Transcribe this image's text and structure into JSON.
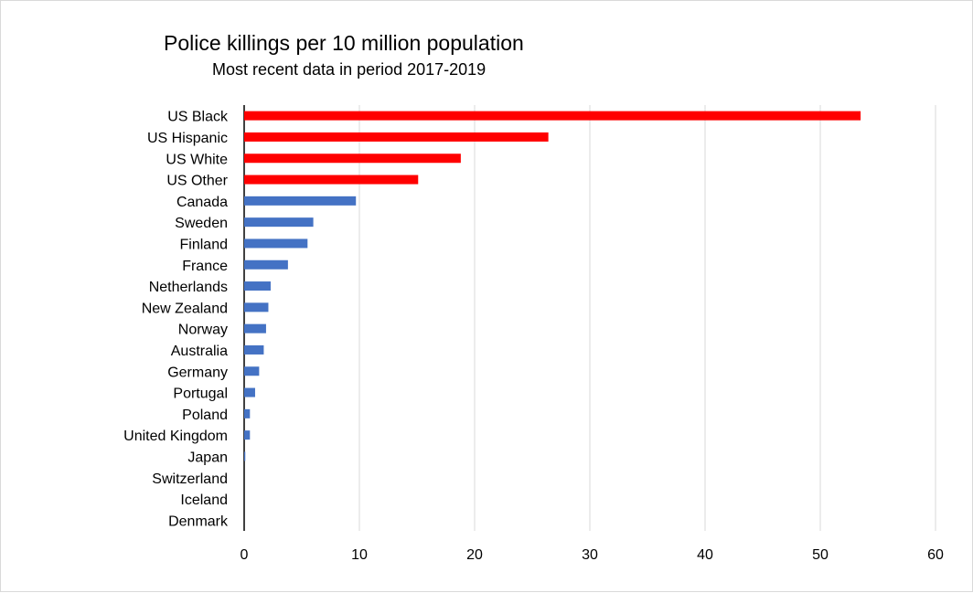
{
  "chart_data": {
    "type": "bar",
    "orientation": "horizontal",
    "title": "Police killings per 10 million population",
    "subtitle": "Most recent data in period 2017-2019",
    "categories": [
      "US Black",
      "US Hispanic",
      "US White",
      "US Other",
      "Canada",
      "Sweden",
      "Finland",
      "France",
      "Netherlands",
      "New Zealand",
      "Norway",
      "Australia",
      "Germany",
      "Portugal",
      "Poland",
      "United Kingdom",
      "Japan",
      "Switzerland",
      "Iceland",
      "Denmark"
    ],
    "values": [
      53.5,
      26.4,
      18.8,
      15.1,
      9.7,
      6.0,
      5.5,
      3.8,
      2.3,
      2.1,
      1.9,
      1.7,
      1.3,
      0.95,
      0.5,
      0.5,
      0.1,
      0,
      0,
      0
    ],
    "colors": [
      "#ff0000",
      "#ff0000",
      "#ff0000",
      "#ff0000",
      "#4472c4",
      "#4472c4",
      "#4472c4",
      "#4472c4",
      "#4472c4",
      "#4472c4",
      "#4472c4",
      "#4472c4",
      "#4472c4",
      "#4472c4",
      "#4472c4",
      "#4472c4",
      "#4472c4",
      "#4472c4",
      "#4472c4",
      "#4472c4"
    ],
    "xlim": [
      0,
      60
    ],
    "xticks": [
      0,
      10,
      20,
      30,
      40,
      50,
      60
    ],
    "grid": true,
    "xlabel": "",
    "ylabel": ""
  }
}
